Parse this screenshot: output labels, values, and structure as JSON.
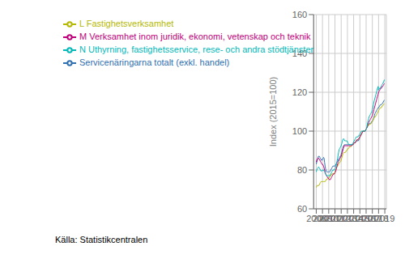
{
  "chart_data": {
    "type": "line",
    "ylabel": "Index (2015=100)",
    "annotation": "Källa: Statistikcentralen",
    "xlim": [
      2007.58,
      2019.25
    ],
    "ylim": [
      60,
      160
    ],
    "yticks": [
      60,
      80,
      100,
      120,
      140,
      160
    ],
    "xticks": [
      2008,
      2009,
      2010,
      2011,
      2012,
      2013,
      2014,
      2015,
      2016,
      2017,
      2018,
      2019
    ],
    "grid": true,
    "legend": "upper left",
    "x": [
      2008.0,
      2008.08,
      2008.17,
      2008.25,
      2008.33,
      2008.42,
      2008.5,
      2008.58,
      2008.67,
      2008.75,
      2008.83,
      2008.92,
      2009.0,
      2009.08,
      2009.17,
      2009.25,
      2009.33,
      2009.42,
      2009.5,
      2009.58,
      2009.67,
      2009.75,
      2009.83,
      2009.92,
      2010.0,
      2010.08,
      2010.17,
      2010.25,
      2010.33,
      2010.42,
      2010.5,
      2010.58,
      2010.67,
      2010.75,
      2010.83,
      2010.92,
      2011.0,
      2011.08,
      2011.17,
      2011.25,
      2011.33,
      2011.42,
      2011.5,
      2011.58,
      2011.67,
      2011.75,
      2011.83,
      2011.92,
      2012.0,
      2012.08,
      2012.17,
      2012.25,
      2012.33,
      2012.42,
      2012.5,
      2012.58,
      2012.67,
      2012.75,
      2012.83,
      2012.92,
      2013.0,
      2013.08,
      2013.17,
      2013.25,
      2013.33,
      2013.42,
      2013.5,
      2013.58,
      2013.67,
      2013.75,
      2013.83,
      2013.92,
      2014.0,
      2014.08,
      2014.17,
      2014.25,
      2014.33,
      2014.42,
      2014.5,
      2014.58,
      2014.67,
      2014.75,
      2014.83,
      2014.92,
      2015.0,
      2015.08,
      2015.17,
      2015.25,
      2015.33,
      2015.42,
      2015.5,
      2015.58,
      2015.67,
      2015.75,
      2015.83,
      2015.92,
      2016.0,
      2016.08,
      2016.17,
      2016.25,
      2016.33,
      2016.42,
      2016.5,
      2016.58,
      2016.67,
      2016.75,
      2016.83,
      2016.92,
      2017.0,
      2017.08,
      2017.17,
      2017.25,
      2017.33,
      2017.42,
      2017.5,
      2017.58,
      2017.67,
      2017.75,
      2017.83,
      2017.92,
      2018.0,
      2018.08,
      2018.17,
      2018.25,
      2018.33,
      2018.42,
      2018.5,
      2018.58,
      2018.67,
      2018.75,
      2018.83,
      2018.92
    ],
    "series": [
      {
        "name": "Servicenäringarna totalt (exkl. handel)",
        "color": "#3070b0",
        "values": [
          83,
          84,
          85,
          86,
          87,
          87,
          87,
          86.5,
          86,
          85.5,
          85,
          85,
          85.5,
          86,
          86.5,
          86,
          84,
          82,
          80.5,
          79.5,
          79,
          79,
          79,
          79,
          79,
          79,
          79,
          79.5,
          80,
          80.5,
          81,
          81.5,
          82,
          82,
          82,
          82,
          82,
          82.5,
          83,
          83.5,
          84,
          84.5,
          85,
          85.5,
          86,
          86.5,
          87,
          87,
          88,
          89,
          90,
          91,
          92,
          92.5,
          93,
          93,
          93,
          93,
          93,
          93,
          93,
          93,
          93,
          93,
          93,
          93,
          93,
          93,
          93,
          93,
          93,
          93.5,
          94,
          94,
          94,
          94,
          94.5,
          95,
          95,
          95,
          95,
          95,
          95.5,
          96,
          97,
          97.5,
          98,
          98.5,
          99,
          99.5,
          100,
          100,
          100,
          100,
          100,
          100.5,
          101,
          101.5,
          102,
          102.5,
          103,
          103.5,
          104,
          104,
          104,
          104,
          104.5,
          105,
          105,
          105.5,
          106,
          107,
          108,
          109,
          109.5,
          110,
          110.5,
          111,
          111.5,
          112,
          112,
          112.5,
          113,
          113.5,
          113.5,
          113.5,
          114,
          114,
          114.5,
          115,
          115.5,
          116
        ]
      },
      {
        "name": "L Fastighetsverksamhet",
        "color": "#b5b800",
        "values": [
          71,
          71.5,
          72,
          72,
          72,
          72,
          72.5,
          73,
          73.5,
          74,
          74,
          74,
          74,
          74,
          74,
          74,
          74,
          74,
          74.5,
          75,
          75,
          75.5,
          75.5,
          75.5,
          76,
          76,
          76.5,
          77,
          77,
          77.5,
          78,
          78,
          78,
          78,
          78,
          78,
          79,
          79.5,
          80,
          81,
          81.5,
          82,
          82.5,
          83,
          83.5,
          84,
          84,
          84.5,
          85,
          86,
          87,
          88,
          88.5,
          89,
          89,
          89,
          89,
          89.5,
          90,
          90,
          90.5,
          91,
          91,
          91.5,
          92,
          92,
          92,
          92,
          92.5,
          93,
          93,
          93,
          93.5,
          94,
          94,
          94,
          94.5,
          95,
          95.5,
          95.5,
          95.5,
          96,
          96,
          96.5,
          97,
          97.5,
          98,
          98.5,
          99,
          99.5,
          100,
          100,
          100,
          100,
          100,
          100.5,
          101,
          101.5,
          102,
          102.5,
          103,
          103,
          103.5,
          103.5,
          103.5,
          104,
          104,
          104.5,
          105,
          105.5,
          106,
          106.5,
          107,
          107.5,
          107.5,
          108,
          108.5,
          109,
          109.5,
          110,
          110.5,
          111,
          111.5,
          112,
          112,
          112,
          112.5,
          113,
          113,
          113.5,
          114,
          114
        ]
      },
      {
        "name": "M Verksamhet inom juridik, ekonomi, vetenskap och teknik",
        "color": "#c0007a",
        "values": [
          84,
          85,
          85.5,
          86,
          86,
          86,
          85.5,
          85,
          84.5,
          84,
          83.5,
          83,
          83,
          82.5,
          82,
          81,
          80,
          79,
          78,
          77.5,
          77,
          76.5,
          76,
          76,
          75.5,
          75,
          75,
          75,
          75.5,
          76,
          76.5,
          77,
          77.5,
          78,
          78,
          78,
          78.5,
          79,
          80,
          81,
          82,
          83,
          84,
          84.5,
          85,
          85.5,
          86,
          86.5,
          87,
          88,
          89,
          90,
          91,
          92,
          92.5,
          92.5,
          92.5,
          92.5,
          92.5,
          92.5,
          92.5,
          92.5,
          92.5,
          92.5,
          92.5,
          92.5,
          92.5,
          92.5,
          92.5,
          93,
          93,
          93,
          93.5,
          94,
          94,
          94,
          94.5,
          95,
          95.5,
          95.5,
          95.5,
          96,
          96,
          96.5,
          97,
          97.5,
          98,
          98.5,
          99,
          99.5,
          100,
          100,
          100,
          100,
          100,
          100.5,
          101,
          101.5,
          102,
          103,
          104,
          104.5,
          105,
          105.5,
          106,
          106.5,
          107,
          107.5,
          108,
          109,
          110,
          111,
          112,
          113,
          114,
          115,
          116,
          117,
          118,
          119,
          120,
          120.5,
          121,
          121.5,
          122,
          122,
          122.5,
          123,
          123,
          123.5,
          124,
          124.5
        ]
      },
      {
        "name": "N Uthyrning, fastighetsservice, rese- och andra stödtjänster",
        "color": "#00b8b8",
        "values": [
          79,
          80,
          80.5,
          81,
          81.5,
          81.5,
          81,
          80.5,
          80,
          79.5,
          79.5,
          79.5,
          80,
          80,
          80,
          79.5,
          79,
          78.5,
          78,
          77.5,
          77,
          77,
          77,
          77,
          77,
          77,
          77,
          77.5,
          78,
          78.5,
          79,
          79.5,
          80,
          80,
          80,
          80,
          80.5,
          81,
          82,
          83,
          84.5,
          86,
          87.5,
          89,
          90.5,
          91,
          91.5,
          92,
          92.5,
          93.5,
          94.5,
          95.5,
          96,
          96,
          95.5,
          95,
          95,
          95,
          95,
          95,
          94.5,
          94,
          93.5,
          93,
          93,
          93,
          93,
          93,
          93,
          93,
          93.5,
          94,
          94.5,
          95,
          95.5,
          96,
          96.5,
          97,
          97,
          97,
          97,
          97.5,
          97.5,
          98,
          98.5,
          99,
          99.5,
          100,
          100,
          100,
          100,
          100,
          100,
          100,
          100,
          100.5,
          101,
          101.5,
          103,
          104.5,
          105.5,
          106.5,
          107.5,
          108,
          108.5,
          109,
          109.5,
          110,
          111,
          112,
          113.5,
          115,
          116,
          117,
          118,
          119,
          120,
          121,
          122,
          123,
          121,
          121.5,
          122,
          122,
          122.5,
          123,
          123.5,
          124,
          124.5,
          125,
          125.5,
          126.5
        ]
      }
    ]
  }
}
